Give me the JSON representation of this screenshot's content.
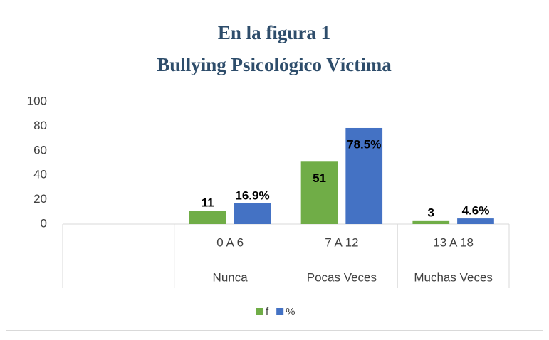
{
  "chart_data": {
    "type": "bar",
    "title": "En la figura 1",
    "subtitle": "Bullying Psicológico Víctima",
    "categories": [
      null,
      "0 A 6",
      "7 A 12",
      "13 A 18"
    ],
    "groups": [
      null,
      "Nunca",
      "Pocas Veces",
      "Muchas Veces"
    ],
    "series": [
      {
        "name": "f",
        "color": "#70ad47",
        "values": [
          null,
          11,
          51,
          3
        ]
      },
      {
        "name": "%",
        "color": "#4472c4",
        "values": [
          null,
          16.9,
          78.5,
          4.6
        ],
        "value_labels": [
          null,
          "16.9%",
          "78.5%",
          "4.6%"
        ]
      }
    ],
    "ylim": [
      0,
      100
    ],
    "yticks": [
      0,
      20,
      40,
      60,
      80,
      100
    ],
    "grid": false,
    "legend": "bottom"
  }
}
